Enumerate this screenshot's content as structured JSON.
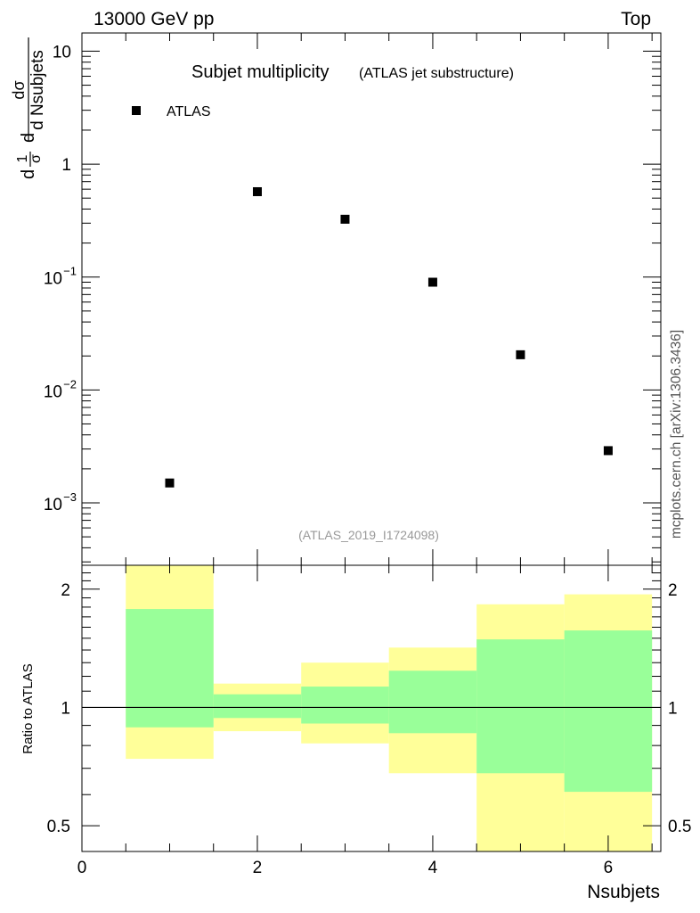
{
  "header": {
    "left": "13000 GeV pp",
    "right": "Top"
  },
  "side_label": "mcplots.cern.ch [arXiv:1306.3436]",
  "chart_data": [
    {
      "type": "scatter",
      "title": "Subjet multiplicity",
      "subtitle": "(ATLAS jet substructure)",
      "reference": "(ATLAS_2019_I1724098)",
      "ylabel": {
        "num": "1",
        "den": "σ",
        "num2": "dσ",
        "den2": "d Nsubjets",
        "prefix": "d"
      },
      "yscale": "log",
      "ylim": [
        0.00028,
        14.5
      ],
      "xlim": [
        0,
        6.6
      ],
      "ytick_labels": [
        {
          "value": 10,
          "base": "10",
          "exp": ""
        },
        {
          "value": 1,
          "base": "1",
          "exp": ""
        },
        {
          "value": 0.1,
          "base": "10",
          "exp": "−1"
        },
        {
          "value": 0.01,
          "base": "10",
          "exp": "−2"
        },
        {
          "value": 0.001,
          "base": "10",
          "exp": "−3"
        }
      ],
      "legend": {
        "position": "top-left",
        "entries": [
          "ATLAS"
        ]
      },
      "series": [
        {
          "name": "ATLAS",
          "color": "#000000",
          "x": [
            1,
            2,
            3,
            4,
            5,
            6
          ],
          "y": [
            0.0015,
            0.57,
            0.325,
            0.09,
            0.0205,
            0.0029
          ]
        }
      ]
    },
    {
      "type": "area",
      "ylabel": "Ratio to ATLAS",
      "xlabel": "Nsubjets",
      "yscale": "log",
      "ylim": [
        0.43,
        2.3
      ],
      "xlim": [
        0,
        6.6
      ],
      "x_tick_labels": [
        "0",
        "2",
        "4",
        "6"
      ],
      "y_tick_labels": [
        "2",
        "1",
        "0.5"
      ],
      "reference_line": 1,
      "bins": [
        [
          0.5,
          1.5
        ],
        [
          1.5,
          2.5
        ],
        [
          2.5,
          3.5
        ],
        [
          3.5,
          4.5
        ],
        [
          4.5,
          5.5
        ],
        [
          5.5,
          6.5
        ]
      ],
      "bands": [
        {
          "name": "yellow",
          "color": "#ffff99",
          "low": [
            0.74,
            0.87,
            0.81,
            0.68,
            0.43,
            0.43
          ],
          "high": [
            2.3,
            1.15,
            1.3,
            1.42,
            1.83,
            1.94
          ]
        },
        {
          "name": "green",
          "color": "#99ff99",
          "low": [
            0.89,
            0.94,
            0.91,
            0.86,
            0.68,
            0.61
          ],
          "high": [
            1.78,
            1.08,
            1.13,
            1.24,
            1.49,
            1.57
          ]
        }
      ]
    }
  ]
}
